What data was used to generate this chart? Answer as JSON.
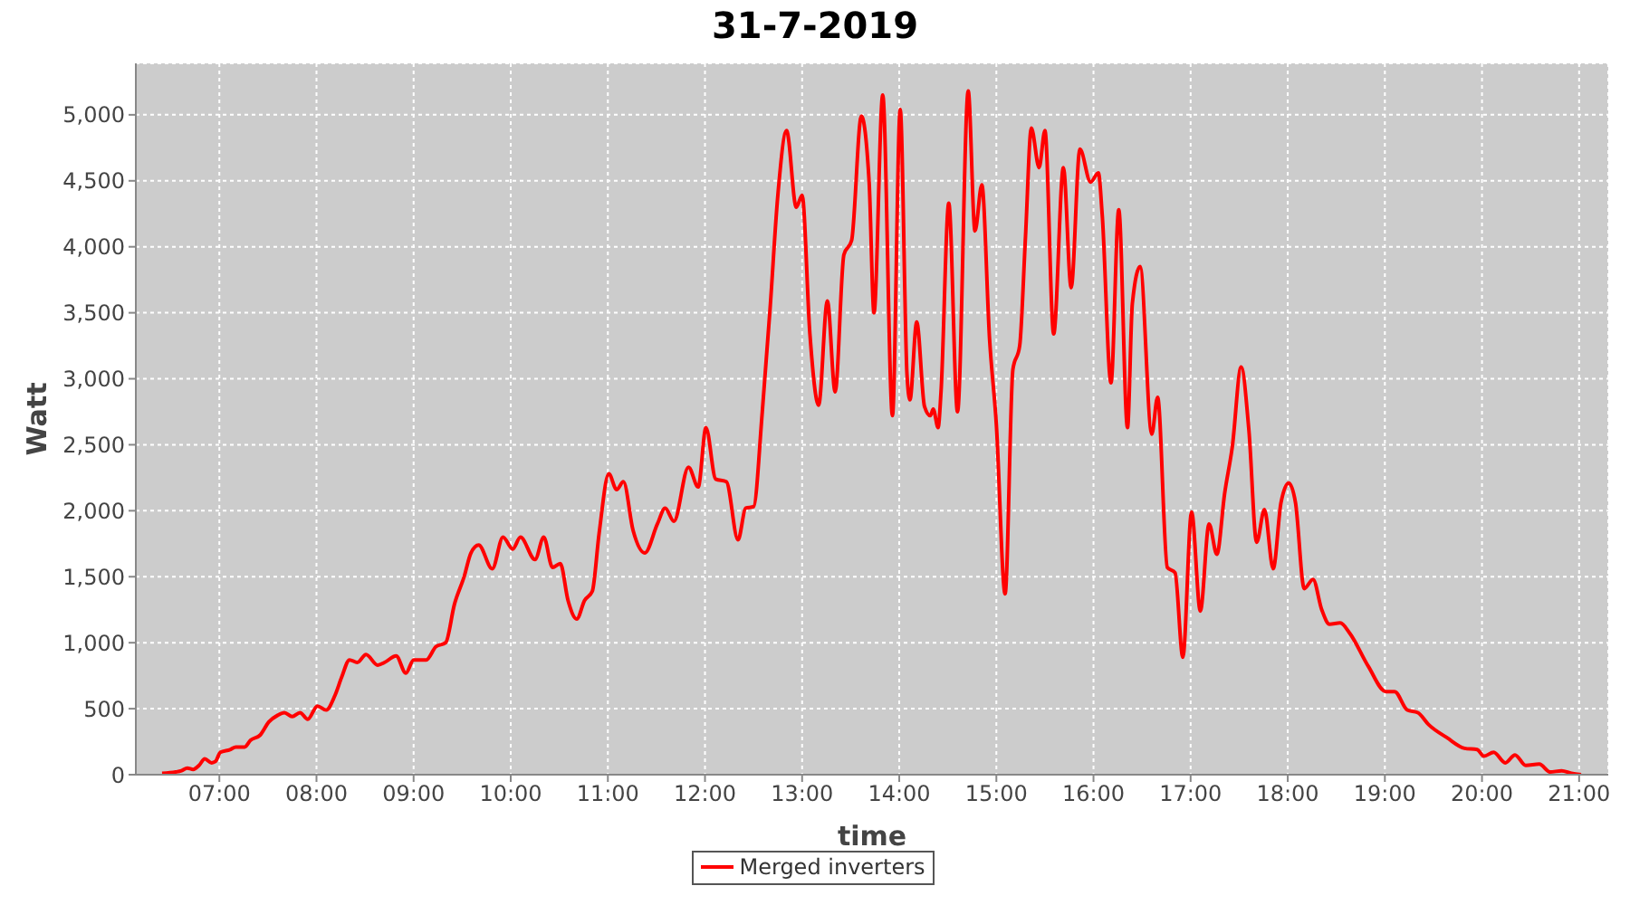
{
  "chart_data": {
    "type": "line",
    "title": "31-7-2019",
    "xlabel": "time",
    "ylabel": "Watt",
    "x": [
      6.41,
      6.55,
      6.61,
      6.67,
      6.73,
      6.79,
      6.85,
      6.92,
      6.96,
      7.01,
      7.11,
      7.17,
      7.26,
      7.32,
      7.42,
      7.51,
      7.6,
      7.67,
      7.75,
      7.83,
      7.91,
      8.01,
      8.1,
      8.19,
      8.26,
      8.34,
      8.42,
      8.51,
      8.63,
      8.7,
      8.82,
      8.92,
      9.0,
      9.13,
      9.23,
      9.33,
      9.42,
      9.52,
      9.59,
      9.67,
      9.81,
      9.92,
      10.02,
      10.1,
      10.25,
      10.34,
      10.43,
      10.51,
      10.59,
      10.68,
      10.76,
      10.84,
      10.91,
      11.01,
      11.09,
      11.16,
      11.26,
      11.38,
      11.51,
      11.59,
      11.68,
      11.83,
      11.93,
      12.01,
      12.11,
      12.22,
      12.34,
      12.42,
      12.5,
      12.59,
      12.67,
      12.75,
      12.84,
      12.94,
      13.0,
      13.08,
      13.17,
      13.26,
      13.34,
      13.43,
      13.51,
      13.61,
      13.69,
      13.74,
      13.83,
      13.93,
      14.01,
      14.08,
      14.11,
      14.18,
      14.26,
      14.32,
      14.35,
      14.4,
      14.43,
      14.51,
      14.6,
      14.71,
      14.78,
      14.85,
      14.93,
      15.0,
      15.09,
      15.17,
      15.24,
      15.3,
      15.36,
      15.44,
      15.5,
      15.59,
      15.69,
      15.77,
      15.86,
      15.97,
      16.05,
      16.09,
      16.18,
      16.26,
      16.35,
      16.4,
      16.48,
      16.6,
      16.66,
      16.76,
      16.84,
      16.92,
      17.01,
      17.1,
      17.19,
      17.27,
      17.35,
      17.43,
      17.52,
      17.6,
      17.68,
      17.76,
      17.85,
      17.93,
      18.01,
      18.08,
      18.17,
      18.26,
      18.35,
      18.43,
      18.54,
      18.64,
      18.83,
      19.01,
      19.1,
      19.23,
      19.34,
      19.45,
      19.64,
      19.82,
      19.95,
      20.02,
      20.12,
      20.24,
      20.34,
      20.45,
      20.59,
      20.7,
      20.82,
      20.92,
      21.02
    ],
    "series": [
      {
        "name": "Merged inverters",
        "color": "#ff0000",
        "values": [
          10,
          20,
          30,
          50,
          40,
          70,
          120,
          90,
          100,
          170,
          190,
          210,
          210,
          260,
          300,
          400,
          450,
          470,
          440,
          470,
          420,
          520,
          490,
          600,
          740,
          870,
          850,
          910,
          830,
          850,
          900,
          770,
          870,
          870,
          970,
          1000,
          1290,
          1500,
          1680,
          1740,
          1560,
          1800,
          1710,
          1800,
          1630,
          1800,
          1570,
          1600,
          1320,
          1180,
          1320,
          1390,
          1830,
          2280,
          2160,
          2220,
          1850,
          1680,
          1900,
          2020,
          1920,
          2330,
          2180,
          2630,
          2240,
          2220,
          1780,
          2020,
          2030,
          2750,
          3530,
          4390,
          4880,
          4300,
          4390,
          3340,
          2800,
          3590,
          2900,
          3940,
          4050,
          4990,
          4490,
          3500,
          5150,
          2720,
          5040,
          3030,
          2840,
          3430,
          2790,
          2720,
          2770,
          2630,
          2900,
          4330,
          2750,
          5180,
          4120,
          4470,
          3300,
          2650,
          1370,
          3070,
          3250,
          4080,
          4900,
          4600,
          4880,
          3340,
          4600,
          3690,
          4740,
          4490,
          4560,
          4240,
          2970,
          4280,
          2630,
          3570,
          3850,
          2580,
          2860,
          1570,
          1530,
          890,
          1990,
          1240,
          1900,
          1670,
          2130,
          2490,
          3090,
          2610,
          1760,
          2010,
          1560,
          2060,
          2210,
          2060,
          1410,
          1480,
          1250,
          1140,
          1150,
          1070,
          820,
          630,
          630,
          490,
          470,
          380,
          280,
          200,
          190,
          140,
          170,
          90,
          150,
          70,
          80,
          20,
          30,
          10,
          0
        ]
      }
    ],
    "xlim": [
      6.14,
      21.3
    ],
    "xticks": [
      {
        "value": 7,
        "label": "07:00"
      },
      {
        "value": 8,
        "label": "08:00"
      },
      {
        "value": 9,
        "label": "09:00"
      },
      {
        "value": 10,
        "label": "10:00"
      },
      {
        "value": 11,
        "label": "11:00"
      },
      {
        "value": 12,
        "label": "12:00"
      },
      {
        "value": 13,
        "label": "13:00"
      },
      {
        "value": 14,
        "label": "14:00"
      },
      {
        "value": 15,
        "label": "15:00"
      },
      {
        "value": 16,
        "label": "16:00"
      },
      {
        "value": 17,
        "label": "17:00"
      },
      {
        "value": 18,
        "label": "18:00"
      },
      {
        "value": 19,
        "label": "19:00"
      },
      {
        "value": 20,
        "label": "20:00"
      },
      {
        "value": 21,
        "label": "21:00"
      }
    ],
    "ylim": [
      0,
      5390
    ],
    "yticks": [
      0,
      500,
      {
        "value": 1000,
        "label": "1,000"
      },
      {
        "value": 1500,
        "label": "1,500"
      },
      {
        "value": 2000,
        "label": "2,000"
      },
      {
        "value": 2500,
        "label": "2,500"
      },
      {
        "value": 3000,
        "label": "3,000"
      },
      {
        "value": 3500,
        "label": "3,500"
      },
      {
        "value": 4000,
        "label": "4,000"
      },
      {
        "value": 4500,
        "label": "4,500"
      },
      {
        "value": 5000,
        "label": "5,000"
      }
    ],
    "grid": true,
    "legend": "bottom",
    "line_style": "solid"
  }
}
